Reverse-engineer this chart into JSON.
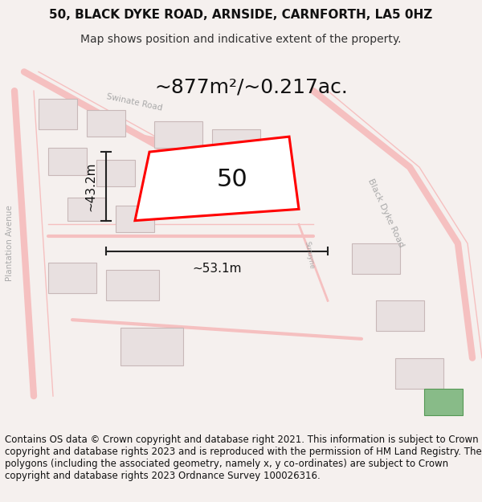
{
  "title_line1": "50, BLACK DYKE ROAD, ARNSIDE, CARNFORTH, LA5 0HZ",
  "title_line2": "Map shows position and indicative extent of the property.",
  "area_text": "~877m²/~0.217ac.",
  "label_50": "50",
  "dim_height": "~43.2m",
  "dim_width": "~53.1m",
  "footer_text": "Contains OS data © Crown copyright and database right 2021. This information is subject to Crown copyright and database rights 2023 and is reproduced with the permission of HM Land Registry. The polygons (including the associated geometry, namely x, y co-ordinates) are subject to Crown copyright and database rights 2023 Ordnance Survey 100026316.",
  "bg_color": "#f5f0ee",
  "map_bg": "#ffffff",
  "road_color": "#f5c0c0",
  "building_color": "#e8e0e0",
  "property_color": "#ff0000",
  "dim_color": "#222222",
  "title_fontsize": 11,
  "subtitle_fontsize": 10,
  "area_fontsize": 18,
  "label_fontsize": 22,
  "dim_fontsize": 11,
  "footer_fontsize": 8.5
}
